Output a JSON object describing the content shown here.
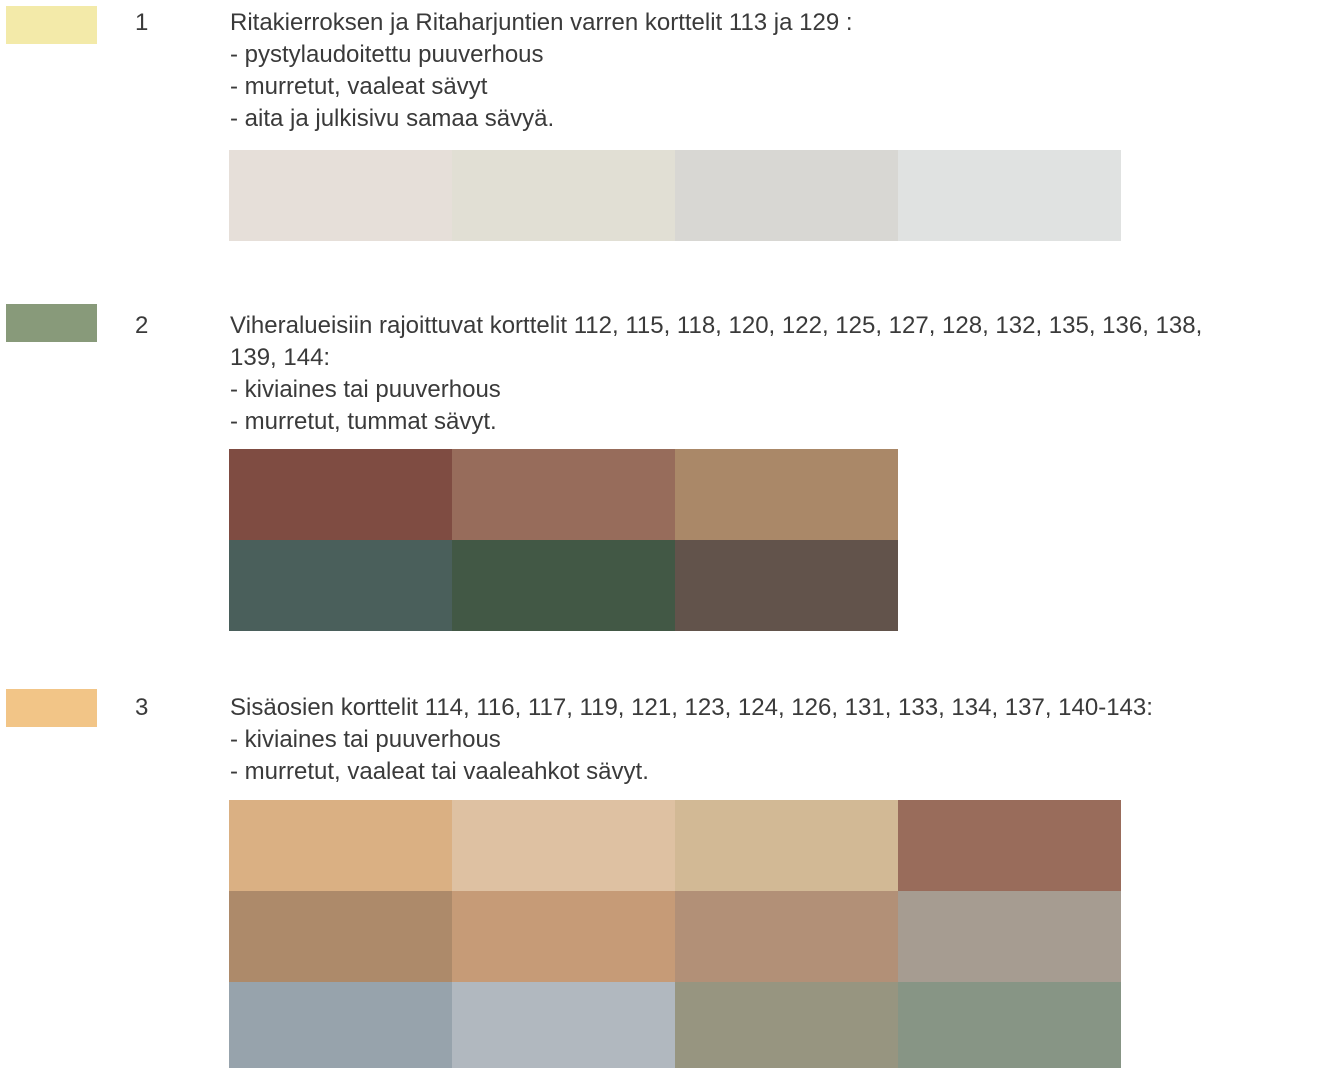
{
  "zones": [
    {
      "number": "1",
      "legend_color": "#f3eaa9",
      "lines": [
        "Ritakierroksen ja Ritaharjuntien varren korttelit 113 ja 129 :",
        "- pystylaudoitettu puuverhous",
        "- murretut, vaaleat sävyt",
        "- aita ja julkisivu samaa sävyä."
      ],
      "palette_columns": 4,
      "palette": [
        "#e6dfd9",
        "#e1dfd4",
        "#d8d7d3",
        "#e0e2e1"
      ]
    },
    {
      "number": "2",
      "legend_color": "#889a7a",
      "lines": [
        "Viheralueisiin rajoittuvat korttelit 112, 115, 118, 120, 122, 125, 127, 128, 132, 135, 136, 138,",
        "139, 144:",
        "- kiviaines tai puuverhous",
        "- murretut, tummat sävyt."
      ],
      "palette_columns": 3,
      "palette": [
        "#7f4c42",
        "#976c5b",
        "#aa8868",
        "#4a5f5b",
        "#425845",
        "#62534b"
      ]
    },
    {
      "number": "3",
      "legend_color": "#f2c587",
      "lines": [
        "Sisäosien korttelit 114, 116, 117, 119, 121, 123, 124, 126, 131, 133, 134, 137, 140-143:",
        "- kiviaines tai puuverhous",
        "- murretut, vaaleat tai vaaleahkot sävyt."
      ],
      "palette_columns": 4,
      "palette": [
        "#dab083",
        "#dec1a2",
        "#d2b995",
        "#996c5b",
        "#ad8a6a",
        "#c69b77",
        "#b29077",
        "#a69c91",
        "#97a3ac",
        "#b1b8bf",
        "#979580",
        "#879585"
      ]
    }
  ]
}
